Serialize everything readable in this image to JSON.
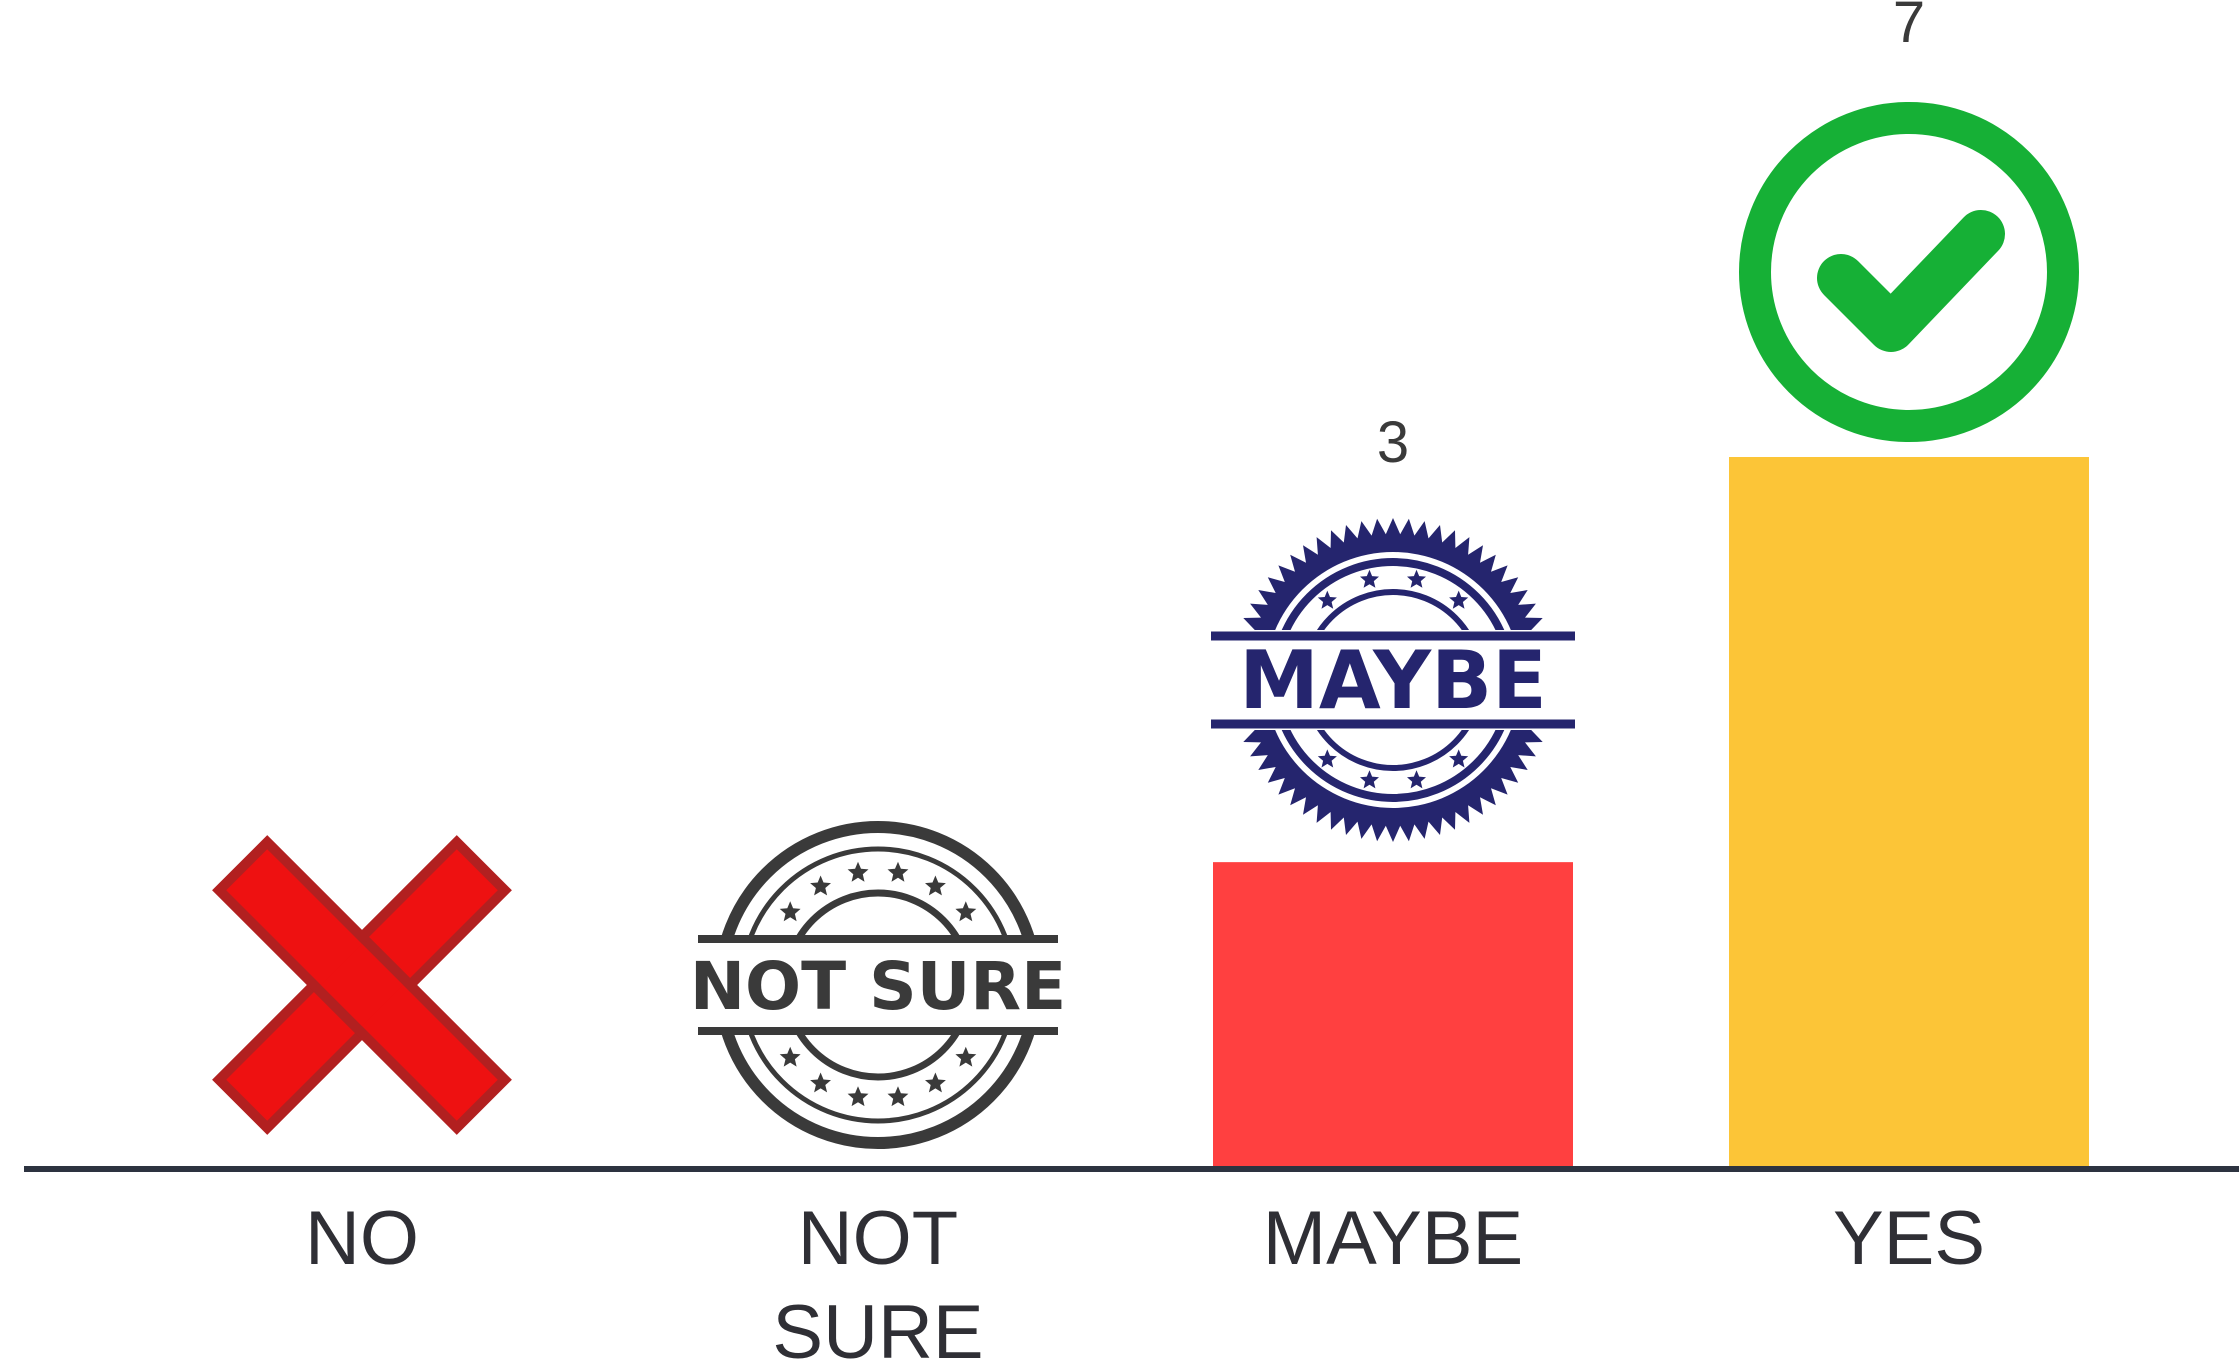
{
  "chart_data": {
    "type": "bar",
    "categories": [
      "NO",
      "NOT SURE",
      "MAYBE",
      "YES"
    ],
    "category_label_lines": [
      [
        "NO"
      ],
      [
        "NOT",
        "SURE"
      ],
      [
        "MAYBE"
      ],
      [
        "YES"
      ]
    ],
    "values": [
      0,
      0,
      3,
      7
    ],
    "value_labels": [
      "",
      "",
      "3",
      "7"
    ],
    "bar_colors": [
      "#ff4040",
      "#ff4040",
      "#ff4040",
      "#fcc537"
    ],
    "ylim": [
      0,
      7
    ],
    "title": "",
    "xlabel": "",
    "ylabel": "",
    "grid": false,
    "legend": "none",
    "baseline_color": "#2d3340"
  },
  "icons": {
    "no": "red-x-icon",
    "not_sure": "not-sure-stamp-icon",
    "maybe": "maybe-stamp-icon",
    "yes": "green-check-icon"
  },
  "stamps": {
    "not_sure_text": "NOT SURE",
    "maybe_text": "MAYBE"
  },
  "colors": {
    "no_icon": "#ee1111",
    "no_icon_border": "#b22020",
    "not_sure_stamp": "#3a3a3a",
    "maybe_stamp": "#25256e",
    "check": "#16b036"
  }
}
